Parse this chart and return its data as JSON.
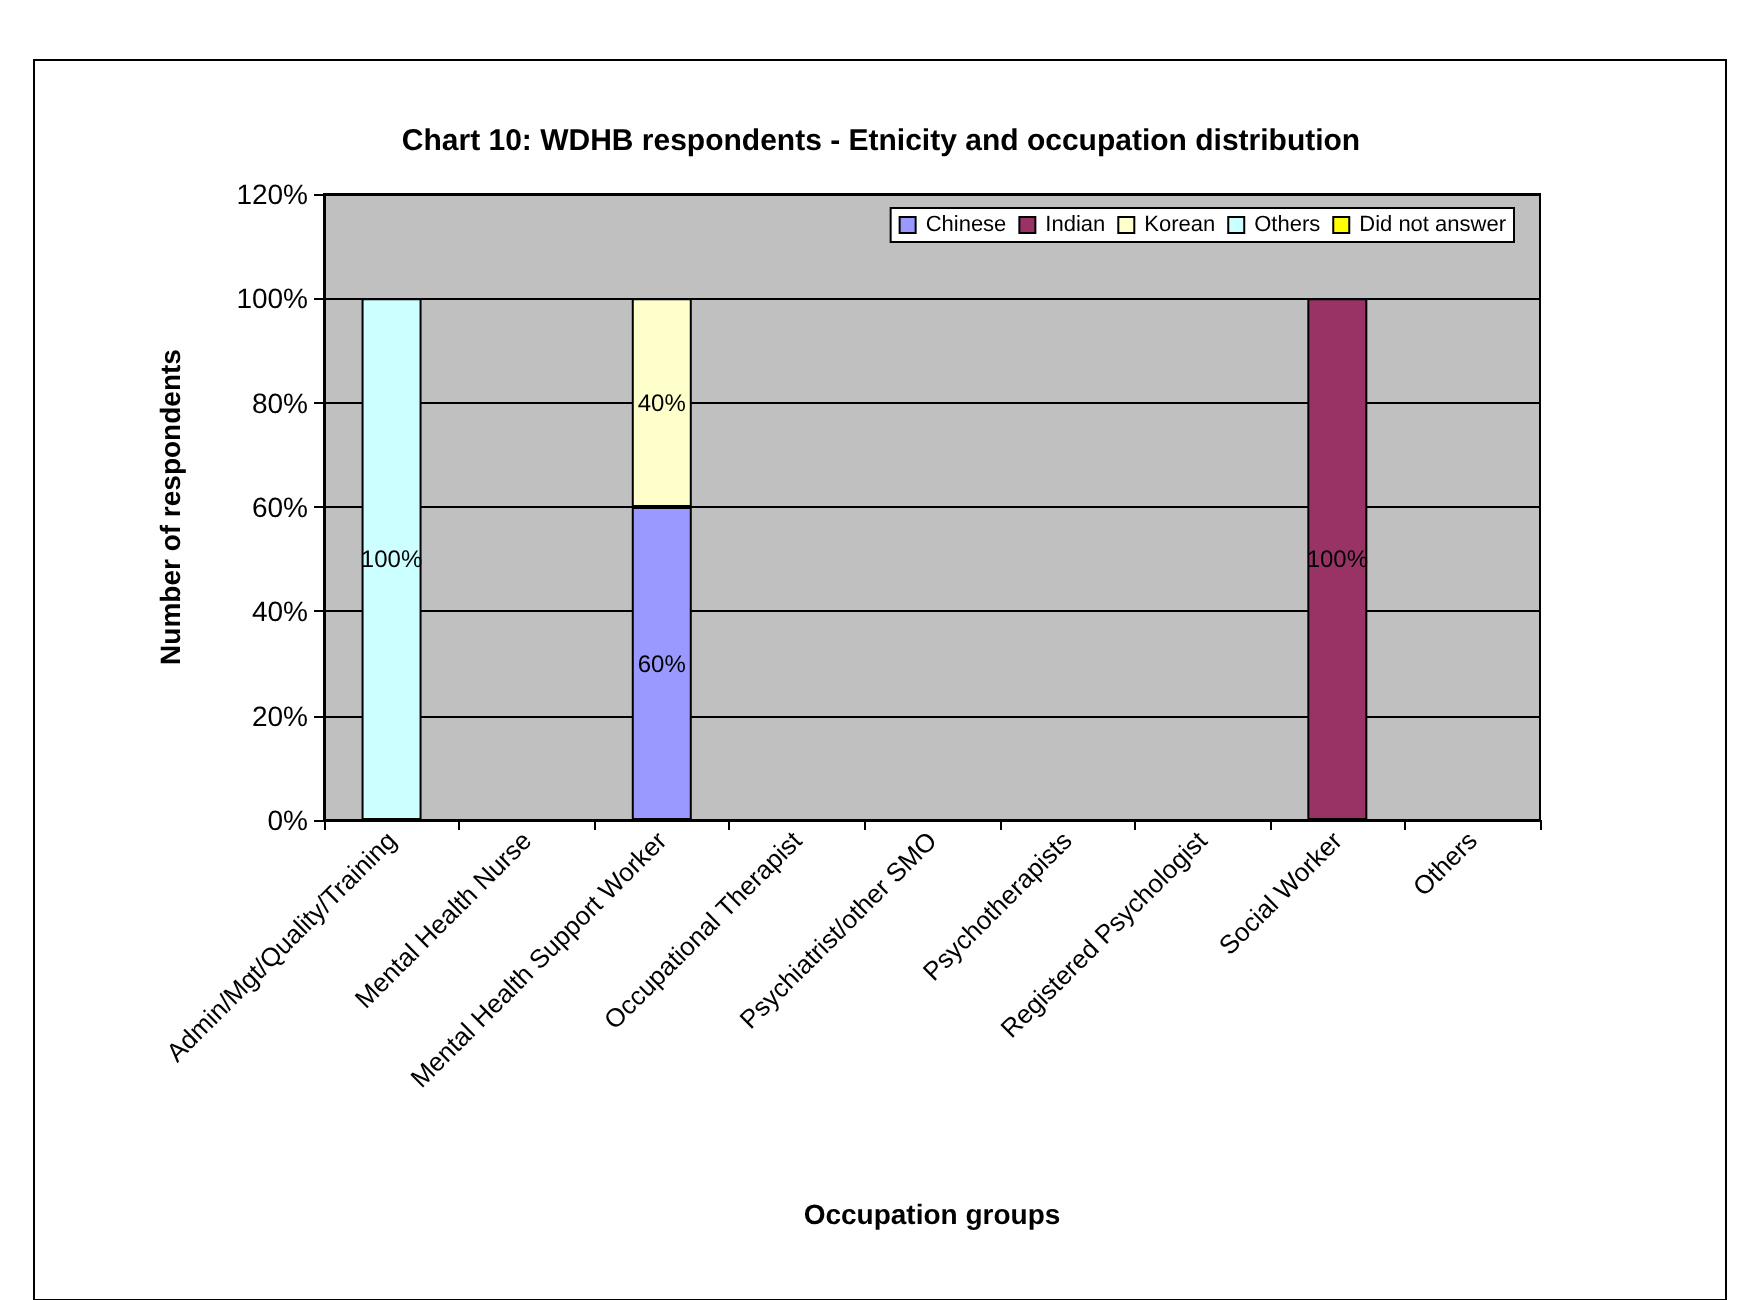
{
  "chart_data": {
    "type": "bar",
    "title": "Chart 10: WDHB respondents - Etnicity and occupation distribution",
    "xlabel": "Occupation groups",
    "ylabel": "Number of respondents",
    "categories": [
      "Admin/Mgt/Quality/Training",
      "Mental Health Nurse",
      "Mental Health Support Worker",
      "Occupational Therapist",
      "Psychiatrist/other SMO",
      "Psychotherapists",
      "Registered Psychologist",
      "Social Worker",
      "Others"
    ],
    "stacked": true,
    "series": [
      {
        "name": "Chinese",
        "color": "#9999ff",
        "values": [
          null,
          null,
          60,
          null,
          null,
          null,
          null,
          null,
          null
        ],
        "value_labels": [
          null,
          null,
          "60%",
          null,
          null,
          null,
          null,
          null,
          null
        ]
      },
      {
        "name": "Indian",
        "color": "#993366",
        "values": [
          null,
          null,
          null,
          null,
          null,
          null,
          null,
          100,
          null
        ],
        "value_labels": [
          null,
          null,
          null,
          null,
          null,
          null,
          null,
          "100%",
          null
        ]
      },
      {
        "name": "Korean",
        "color": "#ffffcc",
        "values": [
          null,
          null,
          40,
          null,
          null,
          null,
          null,
          null,
          null
        ],
        "value_labels": [
          null,
          null,
          "40%",
          null,
          null,
          null,
          null,
          null,
          null
        ]
      },
      {
        "name": "Others",
        "color": "#ccffff",
        "values": [
          100,
          null,
          null,
          null,
          null,
          null,
          null,
          null,
          null
        ],
        "value_labels": [
          "100%",
          null,
          null,
          null,
          null,
          null,
          null,
          null,
          null
        ]
      },
      {
        "name": "Did not answer",
        "color": "#ffff00",
        "values": [
          null,
          null,
          null,
          null,
          null,
          null,
          null,
          null,
          null
        ]
      }
    ],
    "ylim": [
      0,
      120
    ],
    "yticks": [
      {
        "value": 0,
        "label": "0%"
      },
      {
        "value": 20,
        "label": "20%"
      },
      {
        "value": 40,
        "label": "40%"
      },
      {
        "value": 60,
        "label": "60%"
      },
      {
        "value": 80,
        "label": "80%"
      },
      {
        "value": 100,
        "label": "100%"
      },
      {
        "value": 120,
        "label": "120%"
      }
    ],
    "grid": "y",
    "legend": "top right"
  }
}
